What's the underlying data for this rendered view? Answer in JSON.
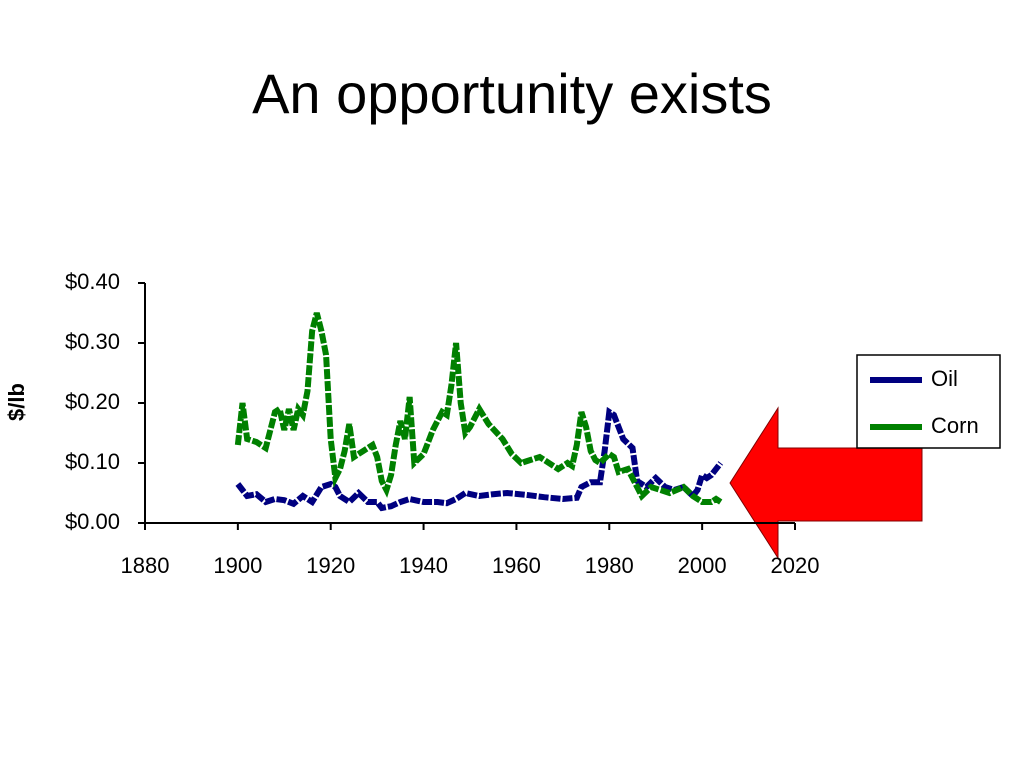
{
  "chart_data": {
    "type": "line",
    "title": "An opportunity exists",
    "y_label": "$/lb",
    "xlim": [
      1880,
      2020
    ],
    "xticks": [
      1880,
      1900,
      1920,
      1940,
      1960,
      1980,
      2000,
      2020
    ],
    "ylim": [
      0,
      0.4
    ],
    "yticks": [
      {
        "value": 0,
        "label": "$0.00"
      },
      {
        "value": 0.1,
        "label": "$0.10"
      },
      {
        "value": 0.2,
        "label": "$0.20"
      },
      {
        "value": 0.3,
        "label": "$0.30"
      },
      {
        "value": 0.4,
        "label": "$0.40"
      }
    ],
    "legend": "right",
    "series": [
      {
        "name": "Oil",
        "color": "#000080",
        "x": [
          1900,
          1901,
          1902,
          1904,
          1906,
          1908,
          1910,
          1912,
          1914,
          1916,
          1918,
          1920,
          1921,
          1922,
          1924,
          1926,
          1928,
          1930,
          1931,
          1933,
          1935,
          1937,
          1940,
          1943,
          1945,
          1947,
          1949,
          1952,
          1955,
          1958,
          1962,
          1966,
          1970,
          1973,
          1974,
          1976,
          1978,
          1979,
          1980,
          1981,
          1983,
          1985,
          1986,
          1988,
          1990,
          1992,
          1994,
          1996,
          1998,
          1999,
          2000,
          2001,
          2002,
          2004
        ],
        "values": [
          0.065,
          0.055,
          0.045,
          0.048,
          0.035,
          0.04,
          0.038,
          0.032,
          0.045,
          0.035,
          0.06,
          0.065,
          0.06,
          0.045,
          0.035,
          0.05,
          0.035,
          0.035,
          0.025,
          0.028,
          0.035,
          0.04,
          0.035,
          0.035,
          0.033,
          0.04,
          0.05,
          0.045,
          0.048,
          0.05,
          0.047,
          0.043,
          0.04,
          0.042,
          0.06,
          0.068,
          0.068,
          0.12,
          0.185,
          0.18,
          0.14,
          0.125,
          0.07,
          0.06,
          0.075,
          0.06,
          0.055,
          0.06,
          0.045,
          0.055,
          0.08,
          0.075,
          0.08,
          0.1
        ]
      },
      {
        "name": "Corn",
        "color": "#008000",
        "x": [
          1900,
          1901,
          1902,
          1904,
          1906,
          1908,
          1909,
          1910,
          1911,
          1912,
          1913,
          1914,
          1915,
          1916,
          1917,
          1918,
          1919,
          1920,
          1921,
          1922,
          1923,
          1924,
          1925,
          1927,
          1929,
          1930,
          1931,
          1932,
          1933,
          1934,
          1935,
          1936,
          1937,
          1938,
          1940,
          1942,
          1944,
          1945,
          1946,
          1947,
          1948,
          1949,
          1950,
          1952,
          1954,
          1957,
          1959,
          1961,
          1963,
          1965,
          1967,
          1969,
          1971,
          1972,
          1973,
          1974,
          1975,
          1976,
          1977,
          1978,
          1980,
          1981,
          1982,
          1984,
          1986,
          1987,
          1989,
          1991,
          1993,
          1996,
          1998,
          2000,
          2002,
          2003,
          2004
        ],
        "values": [
          0.13,
          0.2,
          0.14,
          0.135,
          0.125,
          0.185,
          0.19,
          0.155,
          0.19,
          0.155,
          0.19,
          0.18,
          0.22,
          0.32,
          0.35,
          0.32,
          0.28,
          0.14,
          0.075,
          0.09,
          0.12,
          0.165,
          0.11,
          0.12,
          0.13,
          0.11,
          0.07,
          0.055,
          0.08,
          0.13,
          0.17,
          0.14,
          0.21,
          0.1,
          0.115,
          0.155,
          0.185,
          0.18,
          0.23,
          0.3,
          0.2,
          0.15,
          0.16,
          0.19,
          0.165,
          0.14,
          0.115,
          0.1,
          0.105,
          0.11,
          0.1,
          0.09,
          0.1,
          0.095,
          0.13,
          0.185,
          0.16,
          0.12,
          0.105,
          0.1,
          0.115,
          0.11,
          0.085,
          0.09,
          0.06,
          0.045,
          0.06,
          0.055,
          0.05,
          0.06,
          0.045,
          0.035,
          0.035,
          0.04,
          0.035
        ]
      }
    ]
  }
}
